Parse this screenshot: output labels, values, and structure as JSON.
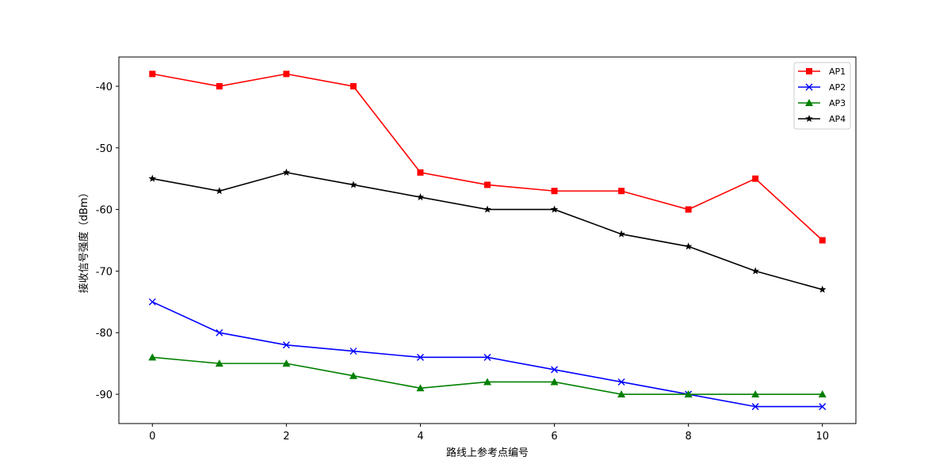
{
  "chart_data": {
    "type": "line",
    "title": "",
    "xlabel": "路线上参考点编号",
    "ylabel": "接收信号强度（dBm）",
    "x": [
      0,
      1,
      2,
      3,
      4,
      5,
      6,
      7,
      8,
      9,
      10
    ],
    "xlim": [
      -0.5,
      10.5
    ],
    "ylim": [
      -94.75,
      -35.25
    ],
    "xticks": [
      0,
      2,
      4,
      6,
      8,
      10
    ],
    "yticks": [
      -90,
      -80,
      -70,
      -60,
      -50,
      -40
    ],
    "grid": false,
    "legend_position": "upper right",
    "series": [
      {
        "name": "AP1",
        "color": "#ff0000",
        "marker": "square",
        "values": [
          -38,
          -40,
          -38,
          -40,
          -54,
          -56,
          -57,
          -57,
          -60,
          -55,
          -65
        ]
      },
      {
        "name": "AP2",
        "color": "#0000ff",
        "marker": "x",
        "values": [
          -75,
          -80,
          -82,
          -83,
          -84,
          -84,
          -86,
          -88,
          -90,
          -92,
          -92
        ]
      },
      {
        "name": "AP3",
        "color": "#008000",
        "marker": "triangle",
        "values": [
          -84,
          -85,
          -85,
          -87,
          -89,
          -88,
          -88,
          -90,
          -90,
          -90,
          -90
        ]
      },
      {
        "name": "AP4",
        "color": "#000000",
        "marker": "star",
        "values": [
          -55,
          -57,
          -54,
          -56,
          -58,
          -60,
          -60,
          -64,
          -66,
          -70,
          -73
        ]
      }
    ]
  }
}
